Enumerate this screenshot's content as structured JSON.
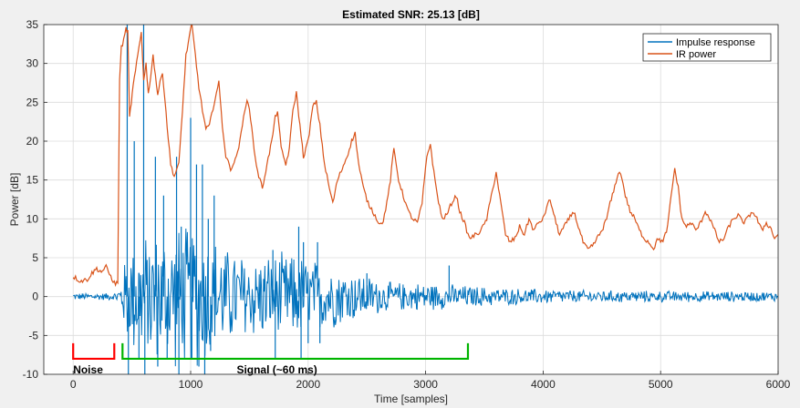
{
  "chart_data": {
    "type": "line",
    "title": "Estimated SNR: 25.13 [dB]",
    "xlabel": "Time [samples]",
    "ylabel": "Power [dB]",
    "xlim": [
      -250,
      6000
    ],
    "ylim": [
      -10,
      35
    ],
    "xticks": [
      0,
      1000,
      2000,
      3000,
      4000,
      5000,
      6000
    ],
    "yticks": [
      -10,
      -5,
      0,
      5,
      10,
      15,
      20,
      25,
      30,
      35
    ],
    "grid": true,
    "legend": {
      "placement": "top-right",
      "entries": [
        "Impulse response",
        "IR power"
      ]
    },
    "colors": {
      "impulse": "#0072bd",
      "power": "#d95319",
      "noise_bracket": "#ff0000",
      "signal_bracket": "#00b400"
    },
    "series": [
      {
        "name": "IR power",
        "points": [
          [
            0,
            2.6
          ],
          [
            60,
            2.0
          ],
          [
            120,
            2.2
          ],
          [
            160,
            3.0
          ],
          [
            200,
            3.6
          ],
          [
            240,
            3.2
          ],
          [
            280,
            3.8
          ],
          [
            320,
            2.6
          ],
          [
            360,
            1.5
          ],
          [
            380,
            2.0
          ],
          [
            395,
            28
          ],
          [
            410,
            32
          ],
          [
            430,
            33
          ],
          [
            450,
            34.5
          ],
          [
            465,
            34
          ],
          [
            480,
            23
          ],
          [
            495,
            25
          ],
          [
            510,
            27
          ],
          [
            540,
            30
          ],
          [
            560,
            32
          ],
          [
            580,
            34
          ],
          [
            600,
            28
          ],
          [
            620,
            30
          ],
          [
            640,
            26
          ],
          [
            680,
            31
          ],
          [
            720,
            26
          ],
          [
            760,
            29
          ],
          [
            800,
            22
          ],
          [
            830,
            17
          ],
          [
            860,
            15.5
          ],
          [
            900,
            17
          ],
          [
            930,
            24
          ],
          [
            960,
            31
          ],
          [
            990,
            33.5
          ],
          [
            1010,
            35
          ],
          [
            1040,
            31
          ],
          [
            1070,
            27
          ],
          [
            1100,
            24
          ],
          [
            1130,
            21.5
          ],
          [
            1160,
            22
          ],
          [
            1200,
            25
          ],
          [
            1240,
            27.5
          ],
          [
            1270,
            22
          ],
          [
            1300,
            18
          ],
          [
            1340,
            16.5
          ],
          [
            1380,
            17.5
          ],
          [
            1420,
            20
          ],
          [
            1460,
            24
          ],
          [
            1480,
            25.5
          ],
          [
            1510,
            23
          ],
          [
            1540,
            19
          ],
          [
            1570,
            16
          ],
          [
            1610,
            14
          ],
          [
            1650,
            17
          ],
          [
            1690,
            20
          ],
          [
            1720,
            23
          ],
          [
            1740,
            24
          ],
          [
            1770,
            19
          ],
          [
            1810,
            17
          ],
          [
            1840,
            19
          ],
          [
            1870,
            24
          ],
          [
            1900,
            26.2
          ],
          [
            1930,
            22
          ],
          [
            1960,
            18
          ],
          [
            2000,
            20
          ],
          [
            2040,
            24.5
          ],
          [
            2070,
            25
          ],
          [
            2100,
            22
          ],
          [
            2140,
            17
          ],
          [
            2180,
            14
          ],
          [
            2210,
            12
          ],
          [
            2250,
            15
          ],
          [
            2290,
            16.5
          ],
          [
            2330,
            18
          ],
          [
            2370,
            20
          ],
          [
            2400,
            21
          ],
          [
            2430,
            17
          ],
          [
            2470,
            14
          ],
          [
            2510,
            12
          ],
          [
            2550,
            11
          ],
          [
            2590,
            9.8
          ],
          [
            2630,
            9.2
          ],
          [
            2670,
            12
          ],
          [
            2700,
            15
          ],
          [
            2730,
            19
          ],
          [
            2770,
            15
          ],
          [
            2810,
            13
          ],
          [
            2850,
            11
          ],
          [
            2890,
            10
          ],
          [
            2930,
            9.5
          ],
          [
            2970,
            12
          ],
          [
            3010,
            18
          ],
          [
            3040,
            19.7
          ],
          [
            3070,
            16
          ],
          [
            3100,
            13
          ],
          [
            3140,
            10
          ],
          [
            3180,
            10.5
          ],
          [
            3220,
            12
          ],
          [
            3260,
            13
          ],
          [
            3290,
            11
          ],
          [
            3330,
            9.5
          ],
          [
            3370,
            7.5
          ],
          [
            3410,
            7.8
          ],
          [
            3450,
            8.2
          ],
          [
            3490,
            9
          ],
          [
            3520,
            10
          ],
          [
            3560,
            13
          ],
          [
            3600,
            16
          ],
          [
            3640,
            12
          ],
          [
            3680,
            8
          ],
          [
            3720,
            7
          ],
          [
            3760,
            7.5
          ],
          [
            3800,
            9
          ],
          [
            3840,
            8
          ],
          [
            3880,
            10
          ],
          [
            3920,
            8.5
          ],
          [
            3960,
            9.5
          ],
          [
            4000,
            10
          ],
          [
            4030,
            11.5
          ],
          [
            4060,
            12.5
          ],
          [
            4100,
            10
          ],
          [
            4140,
            8
          ],
          [
            4180,
            9
          ],
          [
            4220,
            10
          ],
          [
            4260,
            11
          ],
          [
            4300,
            9
          ],
          [
            4340,
            7
          ],
          [
            4380,
            6
          ],
          [
            4420,
            6.5
          ],
          [
            4460,
            7.5
          ],
          [
            4500,
            8.5
          ],
          [
            4540,
            10
          ],
          [
            4570,
            12
          ],
          [
            4600,
            13.5
          ],
          [
            4630,
            15.5
          ],
          [
            4660,
            16
          ],
          [
            4700,
            13
          ],
          [
            4740,
            11
          ],
          [
            4780,
            10
          ],
          [
            4820,
            8.5
          ],
          [
            4860,
            7.5
          ],
          [
            4900,
            7
          ],
          [
            4940,
            6.2
          ],
          [
            4980,
            7.5
          ],
          [
            5020,
            7
          ],
          [
            5060,
            9
          ],
          [
            5090,
            13
          ],
          [
            5120,
            16.5
          ],
          [
            5150,
            14
          ],
          [
            5180,
            10
          ],
          [
            5220,
            9
          ],
          [
            5260,
            9.5
          ],
          [
            5300,
            8.5
          ],
          [
            5340,
            9.5
          ],
          [
            5380,
            11
          ],
          [
            5420,
            10
          ],
          [
            5460,
            8.5
          ],
          [
            5500,
            7
          ],
          [
            5540,
            7.5
          ],
          [
            5580,
            9
          ],
          [
            5620,
            10
          ],
          [
            5660,
            10.5
          ],
          [
            5700,
            9.5
          ],
          [
            5740,
            10
          ],
          [
            5780,
            11
          ],
          [
            5820,
            10
          ],
          [
            5860,
            8.5
          ],
          [
            5900,
            9.5
          ],
          [
            5940,
            8.7
          ],
          [
            5970,
            7.5
          ],
          [
            6000,
            8
          ]
        ]
      },
      {
        "name": "Impulse response",
        "envelope": [
          [
            0,
            0.5
          ],
          [
            350,
            0.5
          ],
          [
            400,
            1.5
          ],
          [
            450,
            6
          ],
          [
            500,
            8
          ],
          [
            700,
            9
          ],
          [
            900,
            10
          ],
          [
            1100,
            10
          ],
          [
            1300,
            7
          ],
          [
            1500,
            6
          ],
          [
            1700,
            6
          ],
          [
            1900,
            6
          ],
          [
            2100,
            5
          ],
          [
            2300,
            4
          ],
          [
            2500,
            3
          ],
          [
            2700,
            2
          ],
          [
            3000,
            2
          ],
          [
            3300,
            1.6
          ],
          [
            3700,
            1.2
          ],
          [
            4300,
            0.9
          ],
          [
            5000,
            0.8
          ],
          [
            6000,
            0.7
          ]
        ],
        "spikes": [
          [
            460,
            35
          ],
          [
            470,
            -10
          ],
          [
            520,
            20
          ],
          [
            560,
            -8
          ],
          [
            600,
            35
          ],
          [
            610,
            -10
          ],
          [
            700,
            18
          ],
          [
            720,
            -9
          ],
          [
            770,
            13
          ],
          [
            800,
            -8
          ],
          [
            880,
            18
          ],
          [
            900,
            -10
          ],
          [
            920,
            9
          ],
          [
            1000,
            23
          ],
          [
            1010,
            -8
          ],
          [
            1050,
            17
          ],
          [
            1070,
            -9
          ],
          [
            1100,
            17
          ],
          [
            1120,
            -10
          ],
          [
            1150,
            10
          ],
          [
            1170,
            -7
          ],
          [
            1200,
            13
          ],
          [
            1700,
            6
          ],
          [
            1720,
            -8
          ],
          [
            1920,
            9
          ],
          [
            1940,
            -8
          ],
          [
            1960,
            7
          ],
          [
            2000,
            -6
          ],
          [
            2080,
            7
          ],
          [
            2100,
            -6
          ],
          [
            2500,
            3
          ],
          [
            3200,
            4
          ]
        ]
      }
    ],
    "annotations": [
      {
        "text": "Noise",
        "bracket": [
          0,
          350
        ],
        "y": -6
      },
      {
        "text": "Signal (~60 ms)",
        "bracket": [
          420,
          3360
        ],
        "y": -6
      }
    ]
  }
}
